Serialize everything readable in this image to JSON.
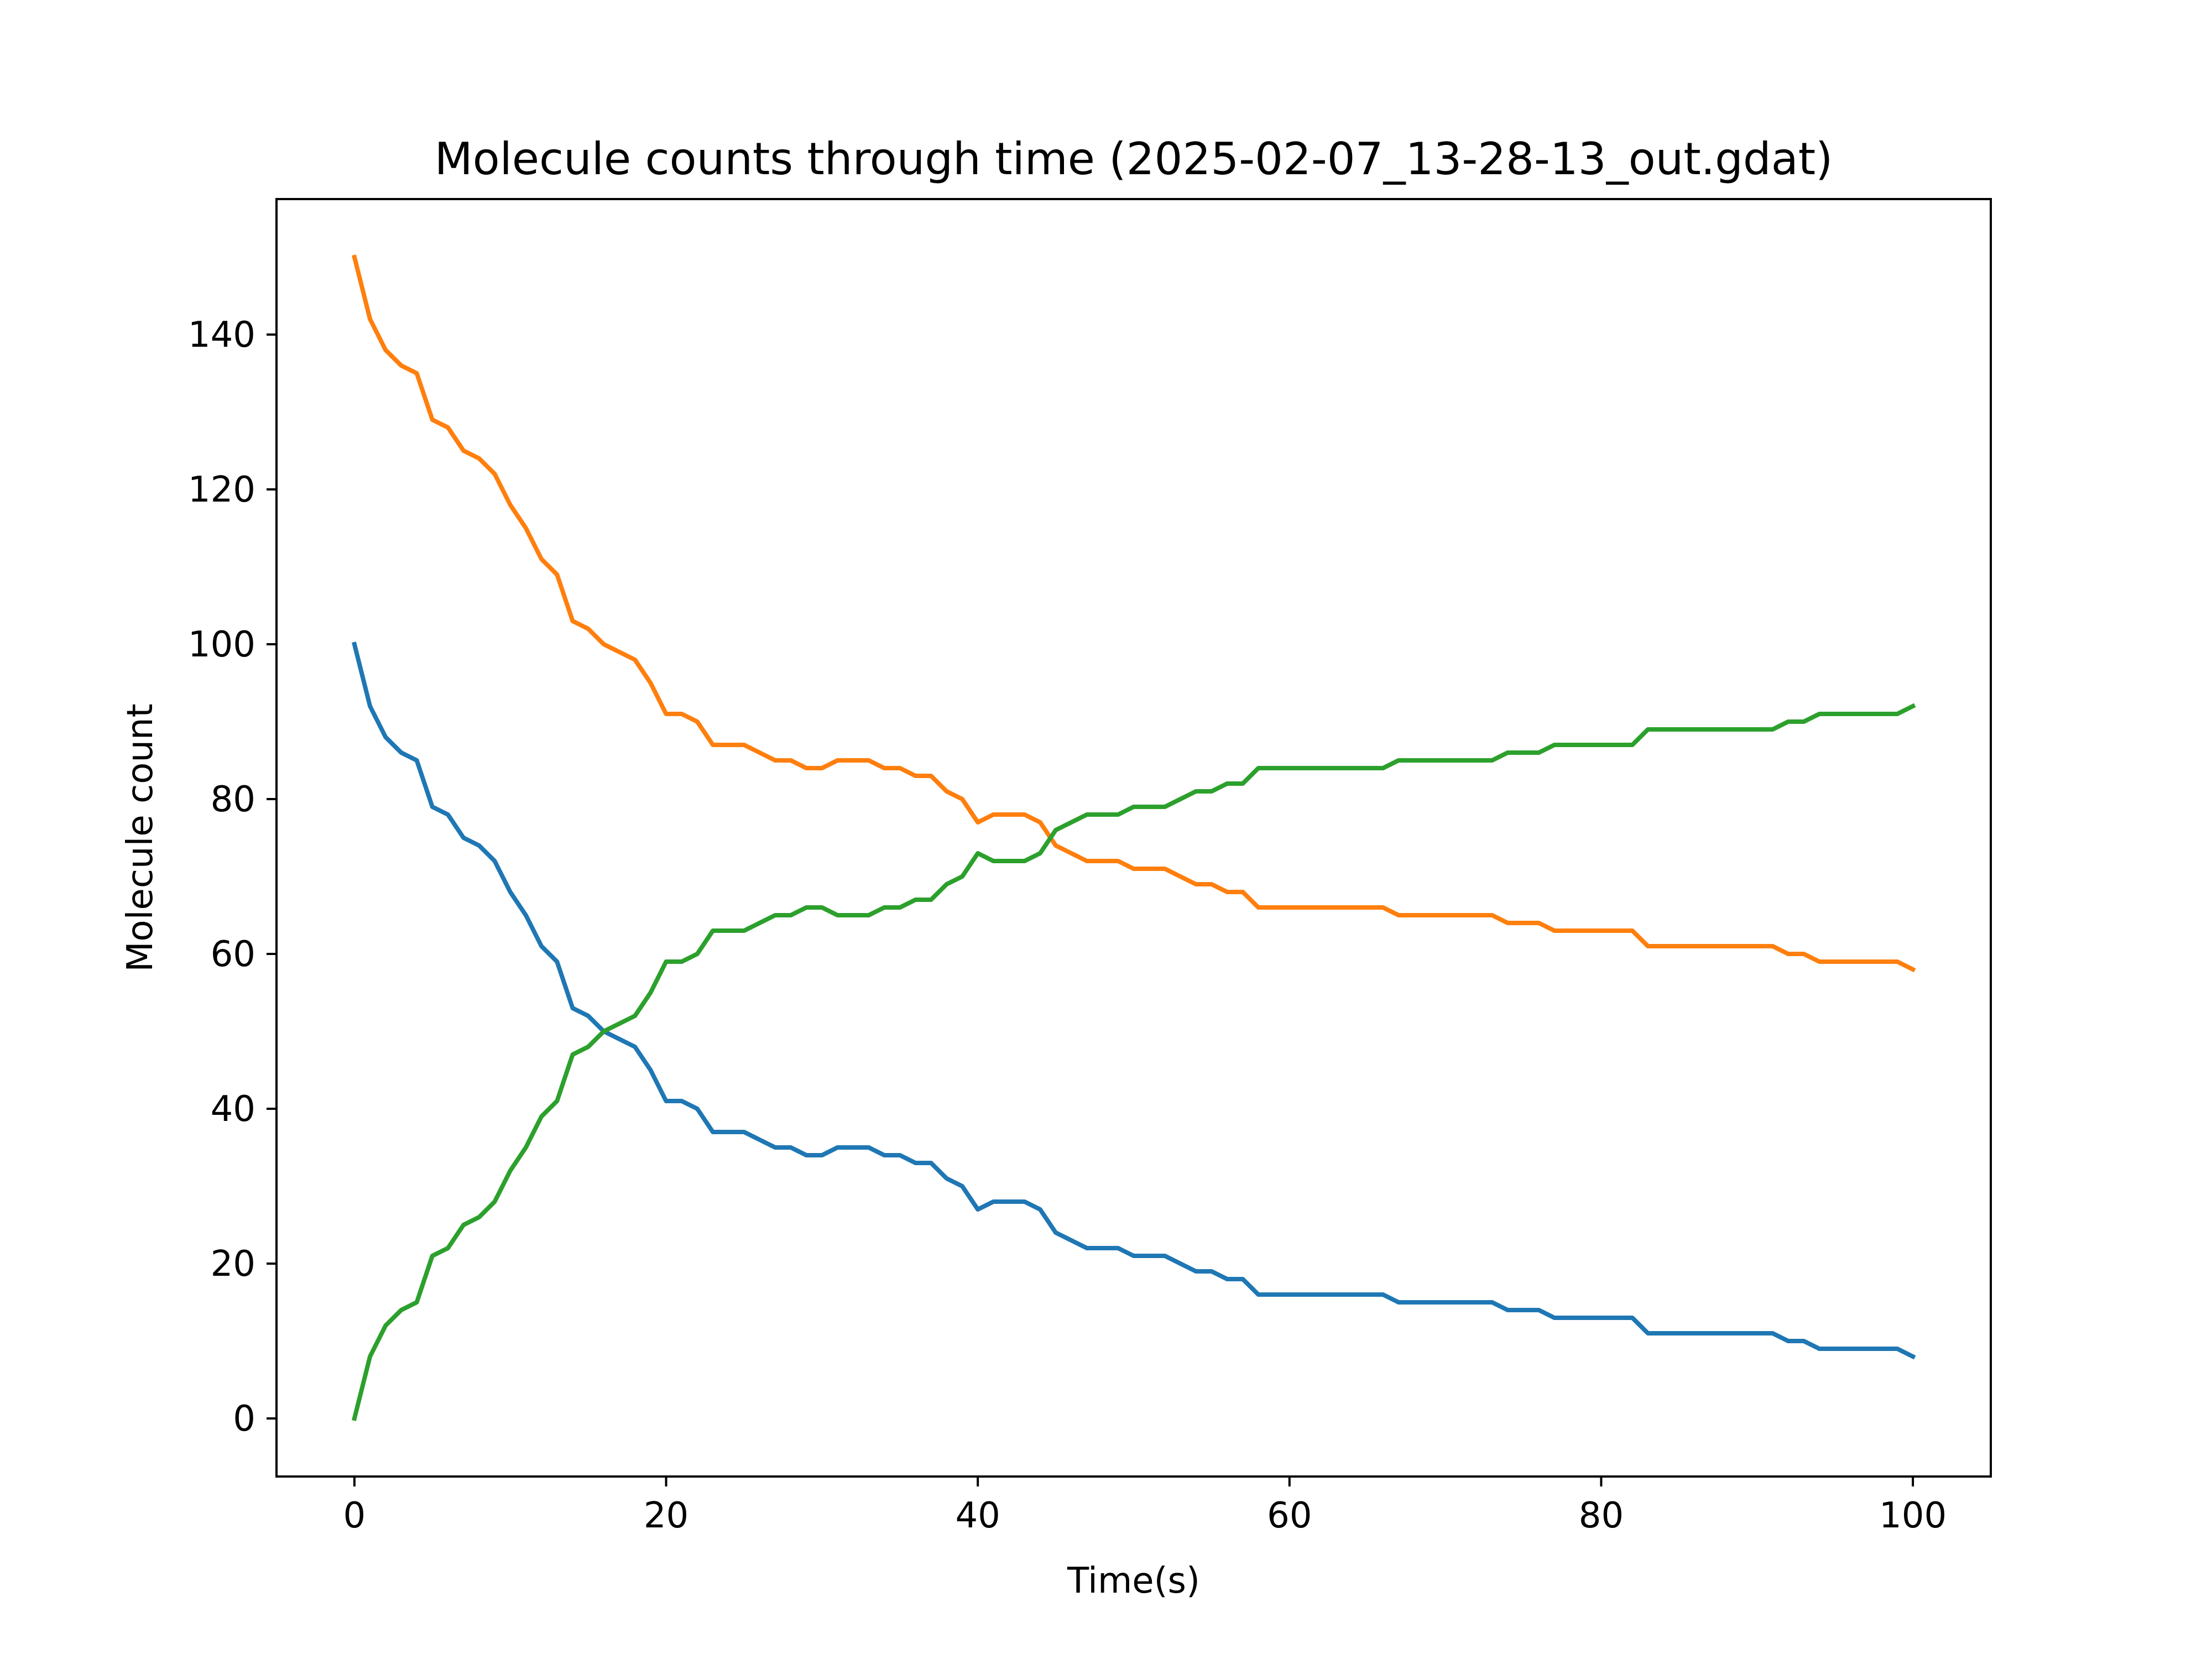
{
  "chart_data": {
    "type": "line",
    "title": "Molecule counts through time (2025-02-07_13-28-13_out.gdat)",
    "xlabel": "Time(s)",
    "ylabel": "Molecule count",
    "xlim": [
      -5,
      105
    ],
    "ylim": [
      -7.5,
      157.5
    ],
    "xticks": [
      0,
      20,
      40,
      60,
      80,
      100
    ],
    "yticks": [
      0,
      20,
      40,
      60,
      80,
      100,
      120,
      140
    ],
    "grid": false,
    "legend": "none",
    "x": [
      0,
      1,
      2,
      3,
      4,
      5,
      6,
      7,
      8,
      9,
      10,
      11,
      12,
      13,
      14,
      15,
      16,
      17,
      18,
      19,
      20,
      21,
      22,
      23,
      24,
      25,
      26,
      27,
      28,
      29,
      30,
      31,
      32,
      33,
      34,
      35,
      36,
      37,
      38,
      39,
      40,
      41,
      42,
      43,
      44,
      45,
      46,
      47,
      48,
      49,
      50,
      51,
      52,
      53,
      54,
      55,
      56,
      57,
      58,
      59,
      60,
      61,
      62,
      63,
      64,
      65,
      66,
      67,
      68,
      69,
      70,
      71,
      72,
      73,
      74,
      75,
      76,
      77,
      78,
      79,
      80,
      81,
      82,
      83,
      84,
      85,
      86,
      87,
      88,
      89,
      90,
      91,
      92,
      93,
      94,
      95,
      96,
      97,
      98,
      99,
      100
    ],
    "series": [
      {
        "color": "#1f77b4",
        "values": [
          100,
          92,
          88,
          86,
          85,
          79,
          78,
          75,
          74,
          72,
          68,
          65,
          61,
          59,
          53,
          52,
          50,
          49,
          48,
          45,
          41,
          41,
          40,
          37,
          37,
          37,
          36,
          35,
          35,
          34,
          34,
          35,
          35,
          35,
          34,
          34,
          33,
          33,
          31,
          30,
          27,
          28,
          28,
          28,
          27,
          24,
          23,
          22,
          22,
          22,
          21,
          21,
          21,
          20,
          19,
          19,
          18,
          18,
          16,
          16,
          16,
          16,
          16,
          16,
          16,
          16,
          16,
          15,
          15,
          15,
          15,
          15,
          15,
          15,
          14,
          14,
          14,
          13,
          13,
          13,
          13,
          13,
          13,
          11,
          11,
          11,
          11,
          11,
          11,
          11,
          11,
          11,
          10,
          10,
          9,
          9,
          9,
          9,
          9,
          9,
          8
        ]
      },
      {
        "color": "#ff7f0e",
        "values": [
          150,
          142,
          138,
          136,
          135,
          129,
          128,
          125,
          124,
          122,
          118,
          115,
          111,
          109,
          103,
          102,
          100,
          99,
          98,
          95,
          91,
          91,
          90,
          87,
          87,
          87,
          86,
          85,
          85,
          84,
          84,
          85,
          85,
          85,
          84,
          84,
          83,
          83,
          81,
          80,
          77,
          78,
          78,
          78,
          77,
          74,
          73,
          72,
          72,
          72,
          71,
          71,
          71,
          70,
          69,
          69,
          68,
          68,
          66,
          66,
          66,
          66,
          66,
          66,
          66,
          66,
          66,
          65,
          65,
          65,
          65,
          65,
          65,
          65,
          64,
          64,
          64,
          63,
          63,
          63,
          63,
          63,
          63,
          61,
          61,
          61,
          61,
          61,
          61,
          61,
          61,
          61,
          60,
          60,
          59,
          59,
          59,
          59,
          59,
          59,
          58
        ]
      },
      {
        "color": "#2ca02c",
        "values": [
          0,
          8,
          12,
          14,
          15,
          21,
          22,
          25,
          26,
          28,
          32,
          35,
          39,
          41,
          47,
          48,
          50,
          51,
          52,
          55,
          59,
          59,
          60,
          63,
          63,
          63,
          64,
          65,
          65,
          66,
          66,
          65,
          65,
          65,
          66,
          66,
          67,
          67,
          69,
          70,
          73,
          72,
          72,
          72,
          73,
          76,
          77,
          78,
          78,
          78,
          79,
          79,
          79,
          80,
          81,
          81,
          82,
          82,
          84,
          84,
          84,
          84,
          84,
          84,
          84,
          84,
          84,
          85,
          85,
          85,
          85,
          85,
          85,
          85,
          86,
          86,
          86,
          87,
          87,
          87,
          87,
          87,
          87,
          89,
          89,
          89,
          89,
          89,
          89,
          89,
          89,
          89,
          90,
          90,
          91,
          91,
          91,
          91,
          91,
          91,
          92
        ]
      }
    ]
  }
}
